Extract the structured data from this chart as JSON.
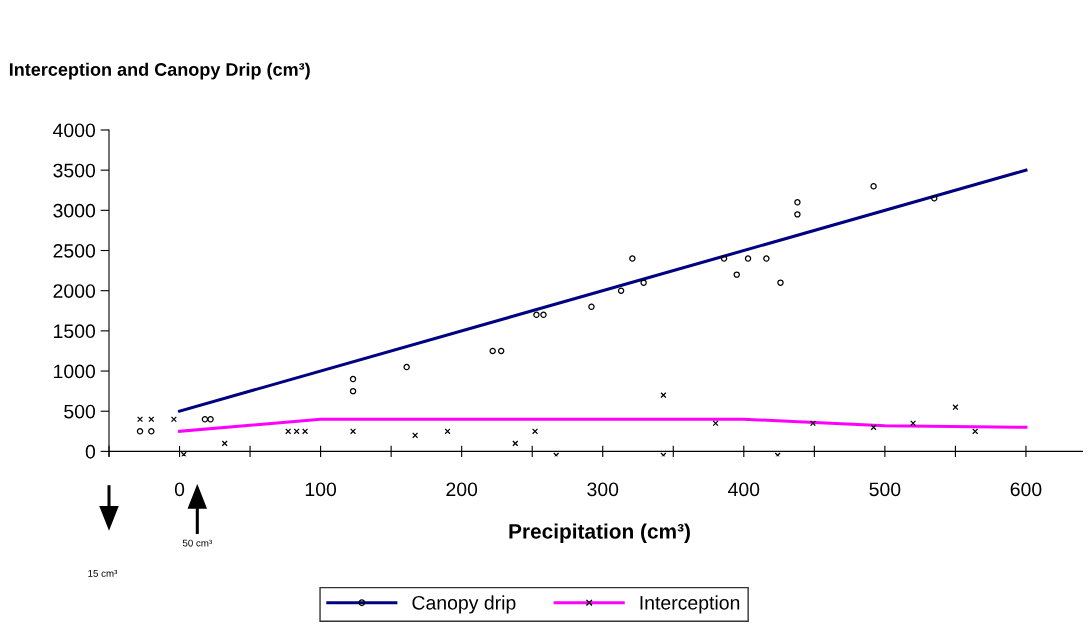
{
  "chart_data": {
    "type": "scatter",
    "title": "Interception and Canopy Drip (cm³)",
    "xlabel": "Precipitation (cm³)",
    "xlim": [
      -50,
      640
    ],
    "ylim": [
      -60,
      4000
    ],
    "xticks": [
      {
        "value": -50,
        "label": null
      },
      0,
      {
        "value": 50,
        "label": null
      },
      100,
      {
        "value": 150,
        "label": null
      },
      200,
      {
        "value": 250,
        "label": null
      },
      300,
      {
        "value": 350,
        "label": null
      },
      400,
      {
        "value": 450,
        "label": null
      },
      500,
      {
        "value": 550,
        "label": null
      },
      600
    ],
    "yticks": [
      0,
      500,
      1000,
      1500,
      2000,
      2500,
      3000,
      3500,
      4000
    ],
    "grid": false,
    "legend": "bottom",
    "annotations": [
      "15 cm³",
      "50 cm³"
    ],
    "series": [
      {
        "marker": "circle",
        "color": "#000000",
        "x": [
          -28,
          -20,
          18,
          22,
          123,
          123,
          161,
          222,
          228,
          253,
          258,
          292,
          313,
          321,
          329,
          386,
          395,
          403,
          416,
          426,
          438,
          438,
          492,
          535
        ],
        "values": [
          250,
          250,
          400,
          400,
          900,
          750,
          1050,
          1250,
          1250,
          1700,
          1700,
          1800,
          2000,
          2400,
          2100,
          2400,
          2200,
          2400,
          2400,
          2100,
          3100,
          2950,
          3300,
          3150
        ]
      },
      {
        "name": "Canopy drip",
        "type": "line",
        "color": "#000080",
        "x": [
          0,
          600
        ],
        "values": [
          500,
          3500
        ]
      },
      {
        "marker": "cross",
        "color": "#000000",
        "x": [
          -28,
          -20,
          -4,
          3,
          32,
          77,
          83,
          89,
          123,
          167,
          190,
          238,
          252,
          267,
          343,
          343,
          380,
          424,
          449,
          492,
          520,
          550,
          564
        ],
        "values": [
          400,
          400,
          400,
          -40,
          100,
          250,
          250,
          250,
          250,
          200,
          250,
          100,
          250,
          -50,
          700,
          -50,
          350,
          -50,
          350,
          300,
          350,
          550,
          250
        ]
      },
      {
        "name": "Interception",
        "type": "line",
        "color": "#ff00ff",
        "x": [
          0,
          100,
          400,
          450,
          500,
          600
        ],
        "values": [
          250,
          400,
          400,
          360,
          320,
          300
        ]
      }
    ]
  }
}
